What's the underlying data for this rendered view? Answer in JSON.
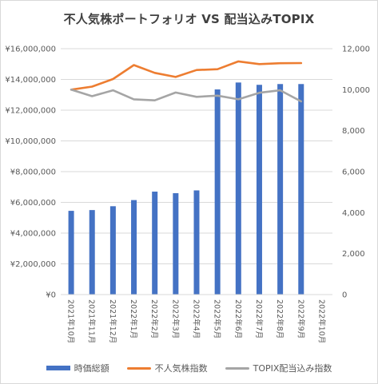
{
  "colors": {
    "bars": "#4472c4",
    "line1": "#ed7d31",
    "line2": "#a5a5a5",
    "grid": "#d9d9d9",
    "text": "#595959"
  },
  "chart_data": {
    "type": "bar",
    "title": "不人気株ポートフォリオ VS 配当込みTOPIX",
    "categories": [
      "2021年10月",
      "2021年11月",
      "2021年12月",
      "2022年1月",
      "2022年2月",
      "2022年3月",
      "2022年4月",
      "2022年5月",
      "2022年6月",
      "2022年7月",
      "2022年8月",
      "2022年9月",
      "2022年10月"
    ],
    "y_left": {
      "ylim": [
        0,
        16000000
      ],
      "ticks": [
        0,
        2000000,
        4000000,
        6000000,
        8000000,
        10000000,
        12000000,
        14000000,
        16000000
      ],
      "tick_labels": [
        "¥0",
        "¥2,000,000",
        "¥4,000,000",
        "¥6,000,000",
        "¥8,000,000",
        "¥10,000,000",
        "¥12,000,000",
        "¥14,000,000",
        "¥16,000,000"
      ]
    },
    "y_right": {
      "ylim": [
        0,
        12000
      ],
      "ticks": [
        0,
        2000,
        4000,
        6000,
        8000,
        10000,
        12000
      ],
      "tick_labels": [
        "0",
        "2,000",
        "4,000",
        "6,000",
        "8,000",
        "10,000",
        "12,000"
      ]
    },
    "grid": true,
    "legend_position": "bottom",
    "series": [
      {
        "name": "時価総額",
        "kind": "bar",
        "axis": "left",
        "values": [
          5450000,
          5500000,
          5750000,
          6150000,
          6700000,
          6600000,
          6780000,
          13350000,
          13800000,
          13650000,
          13700000,
          13700000,
          null
        ]
      },
      {
        "name": "不人気株指数",
        "kind": "line",
        "axis": "right",
        "values": [
          10000,
          10150,
          10520,
          11200,
          10820,
          10620,
          10960,
          11000,
          11380,
          11250,
          11290,
          11300,
          null
        ]
      },
      {
        "name": "TOPIX配当込み指数",
        "kind": "line",
        "axis": "right",
        "values": [
          10000,
          9680,
          9970,
          9530,
          9480,
          9860,
          9650,
          9710,
          9530,
          9850,
          9970,
          9430,
          null
        ]
      }
    ]
  }
}
